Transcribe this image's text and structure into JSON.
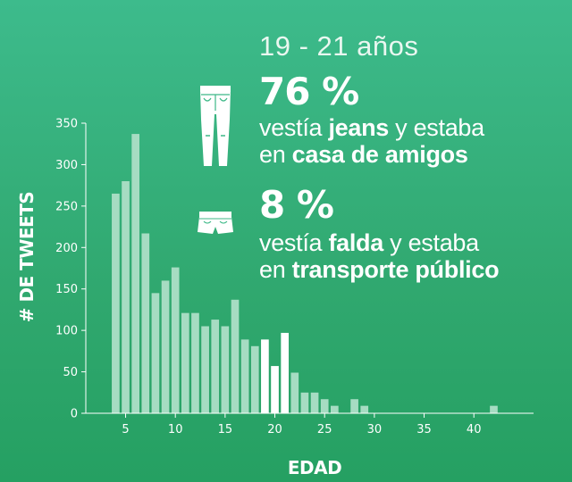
{
  "header": {
    "age_range": "19 - 21 años"
  },
  "stats": [
    {
      "percent": "76 %",
      "icon": "jeans-icon",
      "line1": {
        "pre": "vestía ",
        "bold": "jeans",
        "post": " y estaba"
      },
      "line2": {
        "pre": "en ",
        "bold": "casa de amigos",
        "post": ""
      }
    },
    {
      "percent": "8 %",
      "icon": "shorts-skirt-icon",
      "line1": {
        "pre": "vestía ",
        "bold": "falda",
        "post": " y estaba"
      },
      "line2": {
        "pre": "en ",
        "bold": "transporte público",
        "post": ""
      }
    }
  ],
  "colors": {
    "bar": "#a6dcc2",
    "highlight": "#ffffff",
    "axis": "#ffffff"
  },
  "chart_data": {
    "type": "bar",
    "xlabel": "EDAD",
    "ylabel": "# DE TWEETS",
    "xlim": [
      1,
      46
    ],
    "ylim": [
      0,
      350
    ],
    "xticks": [
      5,
      10,
      15,
      20,
      25,
      30,
      35,
      40
    ],
    "yticks": [
      0,
      50,
      100,
      150,
      200,
      250,
      300,
      350
    ],
    "highlight_range": [
      19,
      21
    ],
    "grid": false,
    "x": [
      4,
      5,
      6,
      7,
      8,
      9,
      10,
      11,
      12,
      13,
      14,
      15,
      16,
      17,
      18,
      19,
      20,
      21,
      22,
      23,
      24,
      25,
      26,
      27,
      28,
      29,
      30,
      31,
      32,
      33,
      34,
      35,
      36,
      37,
      38,
      39,
      40,
      41,
      42
    ],
    "values": [
      265,
      280,
      337,
      217,
      145,
      160,
      176,
      121,
      121,
      105,
      113,
      105,
      137,
      89,
      81,
      89,
      57,
      97,
      49,
      25,
      25,
      17,
      9,
      0,
      17,
      9,
      0,
      0,
      0,
      0,
      0,
      0,
      0,
      0,
      0,
      0,
      0,
      0,
      9
    ]
  }
}
